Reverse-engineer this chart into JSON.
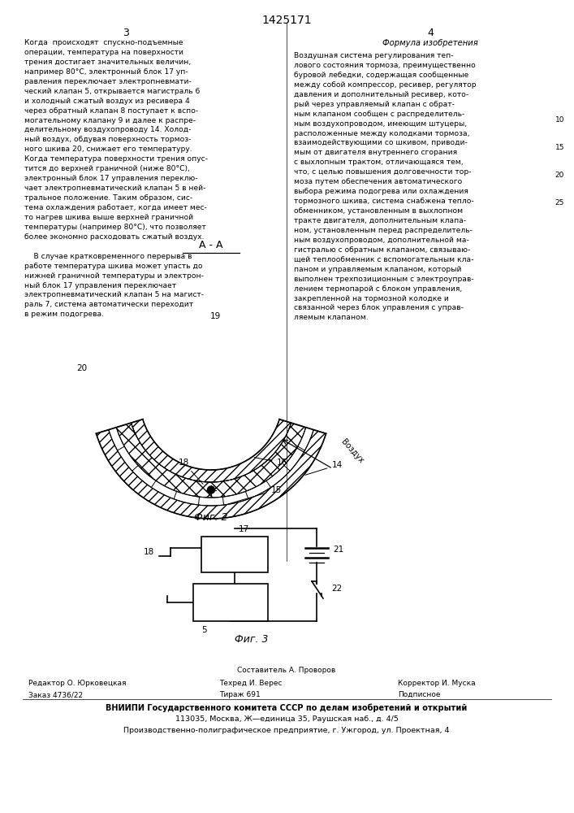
{
  "title_center": "1425171",
  "col_left_num": "3",
  "col_right_num": "4",
  "col_right_heading": "Формула изобретения",
  "col_left_text": "Когда  происходят  спускно-подъемные\nоперации, температура на поверхности\nтрения достигает значительных величин,\nнапример 80°С, электронный блок 17 уп-\nравления переключает электропневмати-\nческий клапан 5, открывается магистраль 6\nи холодный сжатый воздух из ресивера 4\nчерез обратный клапан 8 поступает к вспо-\nмогательному клапану 9 и далее к распре-\nделительному воздухопроводу 14. Холод-\nный воздух, обдувая поверхность тормоз-\nного шкива 20, снижает его температуру.\nКогда температура поверхности трения опус-\nтится до верхней граничной (ниже 80°С),\nэлектронный блок 17 управления переклю-\nчает электропневматический клапан 5 в ней-\nтральное положение. Таким образом, сис-\nтема охлаждения работает, когда имеет мес-\nто нагрев шкива выше верхней граничной\nтемпературы (например 80°С), что позволяет\nболее экономно расходовать сжатый воздух.\n\n    В случае кратковременного перерыва в\nработе температура шкива может упасть до\nнижней граничной температуры и электрон-\nный блок 17 управления переключает\nэлектропневматический клапан 5 на магист-\nраль 7, система автоматически переходит\nв режим подогрева.",
  "col_right_text": "Воздушная система регулирования теп-\nлового состояния тормоза, преимущественно\nбуровой лебедки, содержащая сообщенные\nмежду собой компрессор, ресивер, регулятор\nдавления и дополнительный ресивер, кото-\nрый через управляемый клапан с обрат-\nным клапаном сообщен с распределитель-\nным воздухопроводом, имеющим штуцеры,\nрасположенные между колодками тормоза,\nвзаимодействующими со шкивом, приводи-\nмым от двигателя внутреннего сгорания\nс выхлопным трактом, отличающаяся тем,\nчто, с целью повышения долговечности тор-\nмоза путем обеспечения автоматического\nвыбора режима подогрева или охлаждения\nтормозного шкива, система снабжена тепло-\nобменником, установленным в выхлопном\nтракте двигателя, дополнительным клапа-\nном, установленным перед распределитель-\nным воздухопроводом, дополнительной ма-\nгистралью с обратным клапаном, связываю-\nщей теплообменник с вспомогательным кла-\nпаном и управляемым клапаном, который\nвыполнен трехпозиционным с электроуправ-\nлением термопарой с блоком управления,\nзакрепленной на тормозной колодке и\nсвязанной через блок управления с управ-\nляемым клапаном.",
  "footer_sestavitel": "Составитель А. Проворов",
  "footer_redaktor": "Редактор О. Юрковецкая",
  "footer_tehred": "Техред И. Верес",
  "footer_korrektor": "Корректор И. Муска",
  "footer_zakaz": "Заказ 4736/22",
  "footer_tirazh": "Тираж 691",
  "footer_podpisnoe": "Подписное",
  "footer_vniipи": "ВНИИПИ Государственного комитета СССР по делам изобретений и открытий",
  "footer_address1": "113035, Москва, Ж—единица 35, Раушская наб., д. 4/5",
  "footer_address2": "Производственно-полиграфическое предприятие, г. Ужгород, ул. Проектная, 4",
  "bg_color": "#ffffff",
  "text_color": "#000000"
}
